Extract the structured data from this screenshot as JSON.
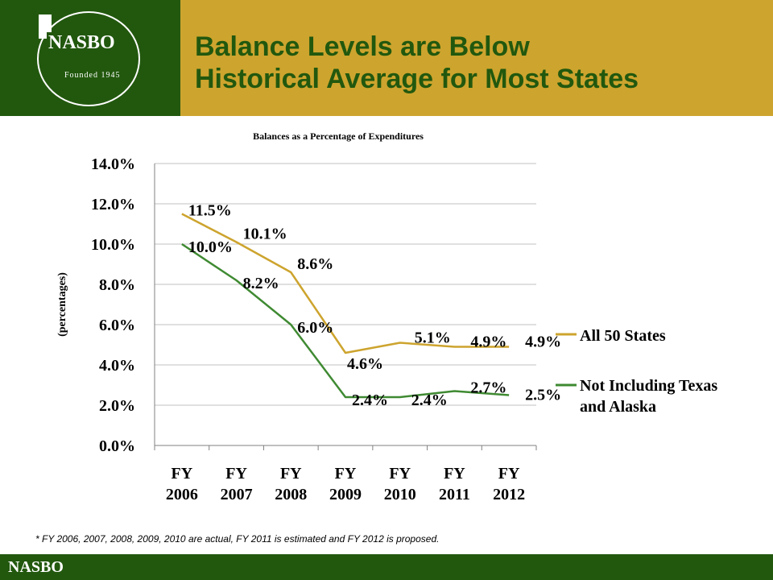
{
  "header": {
    "logo_word": "NASBO",
    "logo_founded": "Founded 1945",
    "title_line1": "Balance Levels are Below",
    "title_line2": "Historical Average for Most States"
  },
  "colors": {
    "header_green": "#22580e",
    "header_gold": "#cda42e",
    "series_all": "#cda42e",
    "series_not_tx_ak": "#3f8a32",
    "title_green": "#22580e"
  },
  "chart_data": {
    "type": "line",
    "title": "Balances as a Percentage of Expenditures",
    "ylabel": "(percentages)",
    "xlabel": "",
    "ylim": [
      0,
      14
    ],
    "yticks": [
      "0.0%",
      "2.0%",
      "4.0%",
      "6.0%",
      "8.0%",
      "10.0%",
      "12.0%",
      "14.0%"
    ],
    "categories": [
      [
        "FY",
        "2006"
      ],
      [
        "FY",
        "2007"
      ],
      [
        "FY",
        "2008"
      ],
      [
        "FY",
        "2009"
      ],
      [
        "FY",
        "2010"
      ],
      [
        "FY",
        "2011"
      ],
      [
        "FY",
        "2012"
      ]
    ],
    "grid": true,
    "legend_position": "right",
    "series": [
      {
        "name": "All 50 States",
        "color": "#cda42e",
        "values": [
          11.5,
          10.1,
          8.6,
          4.6,
          5.1,
          4.9,
          4.9
        ],
        "labels": [
          "11.5%",
          "10.1%",
          "8.6%",
          "4.6%",
          "5.1%",
          "4.9%",
          "4.9%"
        ]
      },
      {
        "name": "Not Including Texas and Alaska",
        "name_lines": [
          "Not Including Texas",
          "and Alaska"
        ],
        "color": "#3f8a32",
        "values": [
          10.0,
          8.2,
          6.0,
          2.4,
          2.4,
          2.7,
          2.5
        ],
        "labels": [
          "10.0%",
          "8.2%",
          "6.0%",
          "2.4%",
          "2.4%",
          "2.7%",
          "2.5%"
        ]
      }
    ]
  },
  "footnote": "* FY 2006, 2007, 2008, 2009, 2010 are actual, FY 2011 is estimated and FY 2012 is proposed.",
  "footer": {
    "text": "NASBO"
  }
}
